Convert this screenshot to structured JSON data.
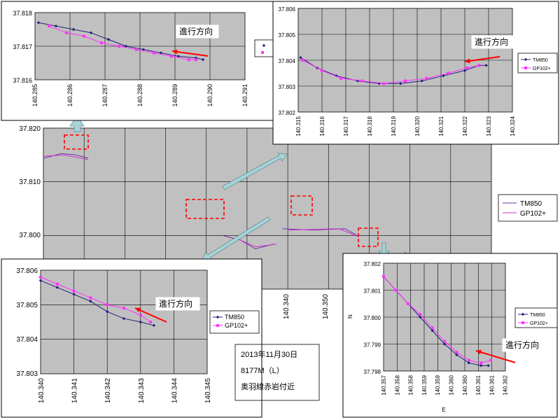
{
  "colors": {
    "plot_bg": "#c0c0c0",
    "grid": "#000000",
    "tm850": "#1f1f7a",
    "gp102": "#ff33ff",
    "main_tm": "#7030a0",
    "main_gp": "#cc33cc",
    "arrow_red": "#ff0000",
    "arrow_teal": "#a6d4d8",
    "box_red": "#ff0000"
  },
  "note": {
    "lines": [
      "2013年11月30日",
      "8177M（L）",
      "奥羽線赤岩付近"
    ]
  },
  "chart_data": [
    {
      "id": "main",
      "type": "line",
      "xlim": [
        140.285,
        140.36
      ],
      "ylim": [
        37.797,
        37.821
      ],
      "yticks": [
        "37.820",
        "37.810",
        "37.800"
      ],
      "xticks": [
        "140.340",
        "140.350"
      ],
      "legend": [
        "TM850",
        "GP102+"
      ],
      "series": [
        {
          "name": "TM850",
          "segments": [
            [
              [
                140.285,
                37.8165
              ],
              [
                140.288,
                37.8172
              ],
              [
                140.2905,
                37.817
              ],
              [
                140.2925,
                37.8165
              ]
            ],
            [
              [
                140.315,
                37.805
              ],
              [
                140.318,
                37.8043
              ],
              [
                140.3205,
                37.803
              ],
              [
                140.3235,
                37.8037
              ]
            ],
            [
              [
                140.325,
                37.806
              ],
              [
                140.33,
                37.8058
              ],
              [
                140.3355,
                37.806
              ],
              [
                140.3375,
                37.805
              ]
            ],
            [
              [
                140.3455,
                37.8025
              ],
              [
                140.3485,
                37.8005
              ],
              [
                140.35,
                37.7983
              ]
            ]
          ]
        },
        {
          "name": "GP102+",
          "segments": [
            [
              [
                140.285,
                37.8168
              ],
              [
                140.2885,
                37.817
              ],
              [
                140.2925,
                37.8163
              ]
            ],
            [
              [
                140.317,
                37.8047
              ],
              [
                140.3205,
                37.8033
              ],
              [
                140.324,
                37.8037
              ]
            ],
            [
              [
                140.326,
                37.8058
              ],
              [
                140.3345,
                37.806
              ],
              [
                140.3378,
                37.8048
              ]
            ],
            [
              [
                140.3458,
                37.8022
              ],
              [
                140.35,
                37.7985
              ]
            ]
          ]
        }
      ]
    },
    {
      "id": "inset-top-left",
      "type": "line",
      "xlim": [
        140.285,
        140.291
      ],
      "ylim": [
        37.816,
        37.818
      ],
      "xticks": [
        "140.285",
        "140.286",
        "140.287",
        "140.288",
        "140.289",
        "140.290",
        "140.291"
      ],
      "yticks": [
        "37.818",
        "37.817",
        "37.816"
      ],
      "annotation": "進行方向",
      "series": [
        {
          "name": "TM850",
          "x": [
            140.2851,
            140.2856,
            140.2861,
            140.2866,
            140.2871,
            140.2876,
            140.2881,
            140.2886,
            140.2891,
            140.2896,
            140.2898
          ],
          "y": [
            37.8177,
            37.8176,
            37.8175,
            37.8174,
            37.8172,
            37.817,
            37.8169,
            37.8168,
            37.8167,
            37.81665,
            37.8166
          ]
        },
        {
          "name": "GP102+",
          "x": [
            140.2854,
            140.2859,
            140.2864,
            140.2869,
            140.2874,
            140.2879,
            140.2884,
            140.2889,
            140.2894,
            140.2896
          ],
          "y": [
            37.8176,
            37.8174,
            37.8173,
            37.8171,
            37.817,
            37.8169,
            37.8168,
            37.8167,
            37.8166,
            37.8166
          ]
        }
      ]
    },
    {
      "id": "inset-top-right",
      "type": "line",
      "xlim": [
        140.315,
        140.324
      ],
      "ylim": [
        37.802,
        37.806
      ],
      "xticks": [
        "140.315",
        "140.316",
        "140.317",
        "140.318",
        "140.319",
        "140.320",
        "140.321",
        "140.322",
        "140.323",
        "140.324"
      ],
      "yticks": [
        "37.806",
        "37.805",
        "37.804",
        "37.803",
        "37.802"
      ],
      "annotation": "進行方向",
      "legend": [
        "TM850",
        "GP102+"
      ],
      "series": [
        {
          "name": "TM850",
          "x": [
            140.3151,
            140.3158,
            140.3166,
            140.3175,
            140.3184,
            140.3193,
            140.3202,
            140.3211,
            140.322,
            140.3226,
            140.3229
          ],
          "y": [
            37.8041,
            37.8037,
            37.8034,
            37.8032,
            37.8031,
            37.8031,
            37.8032,
            37.8034,
            37.8036,
            37.8038,
            37.8038
          ]
        },
        {
          "name": "GP102+",
          "x": [
            140.3152,
            140.316,
            140.3168,
            140.3177,
            140.3186,
            140.3195,
            140.3204,
            140.3213,
            140.3221,
            140.3226
          ],
          "y": [
            37.804,
            37.8036,
            37.8033,
            37.8032,
            37.8031,
            37.8032,
            37.8033,
            37.8035,
            37.8037,
            37.8038
          ]
        }
      ]
    },
    {
      "id": "inset-bottom-left",
      "type": "line",
      "xlim": [
        140.34,
        140.345
      ],
      "ylim": [
        37.803,
        37.806
      ],
      "xticks": [
        "140.340",
        "140.341",
        "140.342",
        "140.343",
        "140.344",
        "140.345"
      ],
      "yticks": [
        "37.806",
        "37.805",
        "37.804",
        "37.803"
      ],
      "annotation": "進行方向",
      "legend": [
        "TM850",
        "GP102+"
      ],
      "series": [
        {
          "name": "TM850",
          "x": [
            140.34,
            140.3405,
            140.341,
            140.3415,
            140.342,
            140.3425,
            140.343,
            140.3434
          ],
          "y": [
            37.8057,
            37.8055,
            37.8053,
            37.8051,
            37.8048,
            37.8046,
            37.8045,
            37.8044
          ]
        },
        {
          "name": "GP102+",
          "x": [
            140.34,
            140.3405,
            140.341,
            140.3415,
            140.342,
            140.3425,
            140.343,
            140.3433
          ],
          "y": [
            37.8058,
            37.8056,
            37.8054,
            37.8052,
            37.805,
            37.8049,
            37.8047,
            37.8045
          ]
        }
      ]
    },
    {
      "id": "inset-bottom-right",
      "type": "line",
      "xlim": [
        140.357,
        140.362
      ],
      "ylim": [
        37.798,
        37.802
      ],
      "xticks": [
        "140.357",
        "140.358",
        "140.358",
        "140.359",
        "140.359",
        "140.360",
        "140.360",
        "140.361",
        "140.361",
        "140.362"
      ],
      "yticks": [
        "37.802",
        "37.801",
        "37.800",
        "37.799",
        "37.798"
      ],
      "xlabel": "E",
      "ylabel": "N",
      "annotation": "進行方向",
      "legend": [
        "TM850",
        "GP102+"
      ],
      "series": [
        {
          "name": "TM850",
          "x": [
            140.357,
            140.3575,
            140.358,
            140.3585,
            140.359,
            140.3595,
            140.36,
            140.3605,
            140.361,
            140.3613
          ],
          "y": [
            37.8015,
            37.801,
            37.8005,
            37.8,
            37.7995,
            37.799,
            37.7986,
            37.7983,
            37.7982,
            37.7982
          ]
        },
        {
          "name": "GP102+",
          "x": [
            140.357,
            140.3575,
            140.358,
            140.3585,
            140.359,
            140.3595,
            140.36,
            140.3605,
            140.361,
            140.3614
          ],
          "y": [
            37.8015,
            37.801,
            37.8005,
            37.8001,
            37.7996,
            37.7991,
            37.7987,
            37.7984,
            37.7983,
            37.7984
          ]
        }
      ]
    }
  ]
}
